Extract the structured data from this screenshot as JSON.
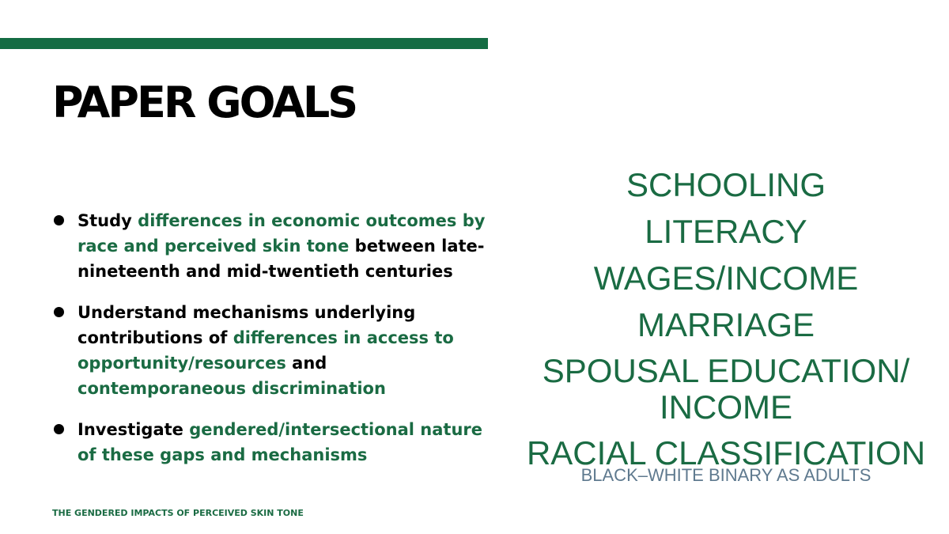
{
  "title": "PAPER GOALS",
  "bullets": [
    {
      "parts": [
        {
          "text": "Study ",
          "color": "black"
        },
        {
          "text": "differences in economic outcomes by race and perceived skin tone",
          "color": "green"
        },
        {
          "text": " between late-nineteenth and mid-twentieth centuries",
          "color": "black"
        }
      ]
    },
    {
      "parts": [
        {
          "text": "Understand mechanisms underlying contributions of ",
          "color": "black"
        },
        {
          "text": "differences in access to opportunity/resources",
          "color": "green"
        },
        {
          "text": " and ",
          "color": "black"
        },
        {
          "text": "contemporaneous discrimination",
          "color": "green"
        }
      ]
    },
    {
      "parts": [
        {
          "text": "Investigate ",
          "color": "black"
        },
        {
          "text": "gendered/intersectional nature of these gaps and mechanisms",
          "color": "green"
        }
      ]
    }
  ],
  "topics": {
    "schooling": "SCHOOLING",
    "literacy": "LITERACY",
    "wages": "WAGES/INCOME",
    "marriage": "MARRIAGE",
    "spousal_line1": "SPOUSAL EDUCATION/",
    "spousal_line2": "INCOME",
    "racial": "RACIAL CLASSIFICATION",
    "racial_sub": "BLACK–WHITE BINARY AS ADULTS"
  },
  "footer": "THE GENDERED IMPACTS OF PERCEIVED SKIN TONE",
  "colors": {
    "accent_green": "#146c43",
    "text_green": "#1a6b43",
    "subtopic_gray": "#5f7a8f"
  }
}
